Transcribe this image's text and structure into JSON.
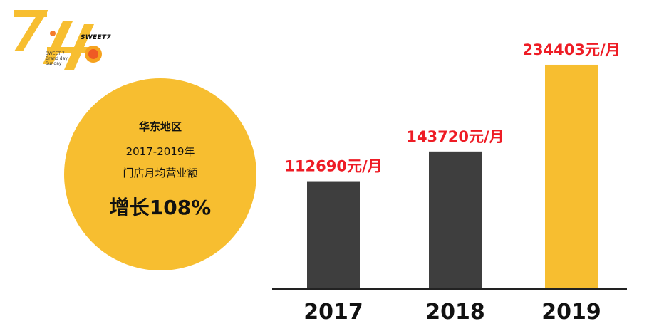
{
  "logo": {
    "brand": "SWEET7",
    "sub_lines": [
      "SWEET 7",
      "Brand day",
      "Sunday"
    ]
  },
  "summary": {
    "region": "华东地区",
    "years": "2017-2019年",
    "metric": "门店月均营业额",
    "growth": "增长108%"
  },
  "colors": {
    "accent": "#f7be30",
    "bar_dark": "#3e3e3e",
    "value_label": "#ee1c25"
  },
  "chart_data": {
    "type": "bar",
    "categories": [
      "2017",
      "2018",
      "2019"
    ],
    "values": [
      112690,
      143720,
      234403
    ],
    "value_labels": [
      "112690元/月",
      "143720元/月",
      "234403元/月"
    ],
    "bar_colors": [
      "#3e3e3e",
      "#3e3e3e",
      "#f7be30"
    ],
    "title": "",
    "xlabel": "",
    "ylabel": "",
    "ylim": [
      0,
      250000
    ],
    "grid": false,
    "legend": "none"
  }
}
